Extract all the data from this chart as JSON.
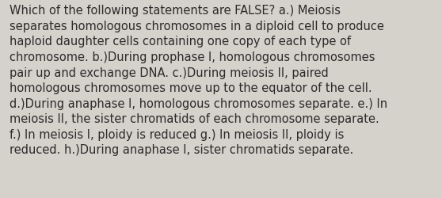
{
  "lines": [
    "Which of the following statements are FALSE? a.) Meiosis",
    "separates homologous chromosomes in a diploid cell to produce",
    "haploid daughter cells containing one copy of each type of",
    "chromosome. b.)During prophase I, homologous chromosomes",
    "pair up and exchange DNA. c.)During meiosis II, paired",
    "homologous chromosomes move up to the equator of the cell.",
    "d.)During anaphase I, homologous chromosomes separate. e.) In",
    "meiosis II, the sister chromatids of each chromosome separate.",
    "f.) In meiosis I, ploidy is reduced g.) In meiosis II, ploidy is",
    "reduced. h.)During anaphase I, sister chromatids separate."
  ],
  "background_color": "#d5d1cb",
  "text_color": "#2b2b2b",
  "font_size": 10.5,
  "fig_width": 5.58,
  "fig_height": 2.51,
  "dpi": 100
}
